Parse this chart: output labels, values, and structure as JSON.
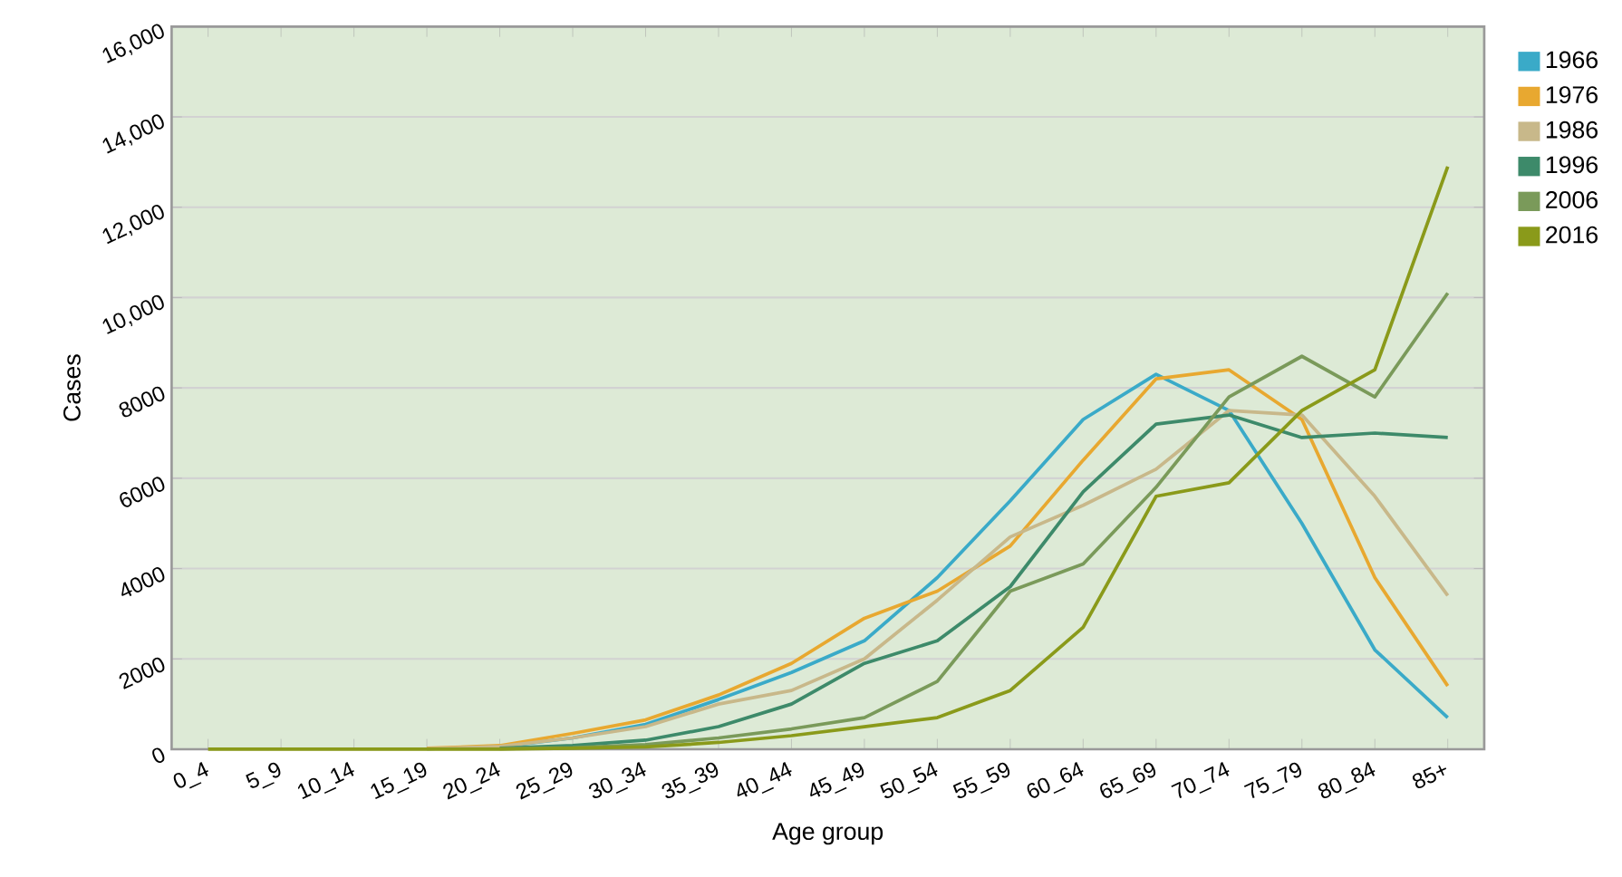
{
  "chart_data": {
    "type": "line",
    "xlabel": "Age group",
    "ylabel": "Cases",
    "categories": [
      "0_4",
      "5_9",
      "10_14",
      "15_19",
      "20_24",
      "25_29",
      "30_34",
      "35_39",
      "40_44",
      "45_49",
      "50_54",
      "55_59",
      "60_64",
      "65_69",
      "70_74",
      "75_79",
      "80_84",
      "85+"
    ],
    "series": [
      {
        "name": "1966",
        "color": "#3aaac8",
        "values": [
          null,
          null,
          null,
          10,
          50,
          250,
          550,
          1100,
          1700,
          2400,
          3800,
          5500,
          7300,
          8300,
          7500,
          5000,
          2200,
          700
        ]
      },
      {
        "name": "1976",
        "color": "#e8a830",
        "values": [
          null,
          null,
          null,
          20,
          80,
          350,
          650,
          1200,
          1900,
          2900,
          3500,
          4500,
          6400,
          8200,
          8400,
          7300,
          3800,
          1400
        ]
      },
      {
        "name": "1986",
        "color": "#c8b88a",
        "values": [
          null,
          null,
          null,
          10,
          60,
          250,
          500,
          1000,
          1300,
          2000,
          3300,
          4700,
          5400,
          6200,
          7500,
          7400,
          5600,
          3400
        ]
      },
      {
        "name": "1996",
        "color": "#3d8a6a",
        "values": [
          null,
          null,
          null,
          null,
          20,
          80,
          200,
          500,
          1000,
          1900,
          2400,
          3600,
          5700,
          7200,
          7400,
          6900,
          7000,
          6900
        ]
      },
      {
        "name": "2006",
        "color": "#7a9a5a",
        "values": [
          null,
          null,
          null,
          null,
          10,
          30,
          100,
          250,
          450,
          700,
          1500,
          3500,
          4100,
          5800,
          7800,
          8700,
          7800,
          10100
        ]
      },
      {
        "name": "2016",
        "color": "#8a9a1a",
        "values": [
          0,
          0,
          0,
          0,
          0,
          20,
          50,
          150,
          300,
          500,
          700,
          1300,
          2700,
          5600,
          5900,
          7500,
          8400,
          12900
        ]
      }
    ],
    "ylim": [
      0,
      16000
    ],
    "yticks": [
      0,
      2000,
      4000,
      6000,
      8000,
      {
        "value": 10000,
        "label": "10,000"
      },
      {
        "value": 12000,
        "label": "12,000"
      },
      {
        "value": 14000,
        "label": "14,000"
      },
      {
        "value": 16000,
        "label": "16,000"
      }
    ],
    "grid": "y",
    "legend": "right",
    "marker": "none",
    "line_style": "solid"
  }
}
